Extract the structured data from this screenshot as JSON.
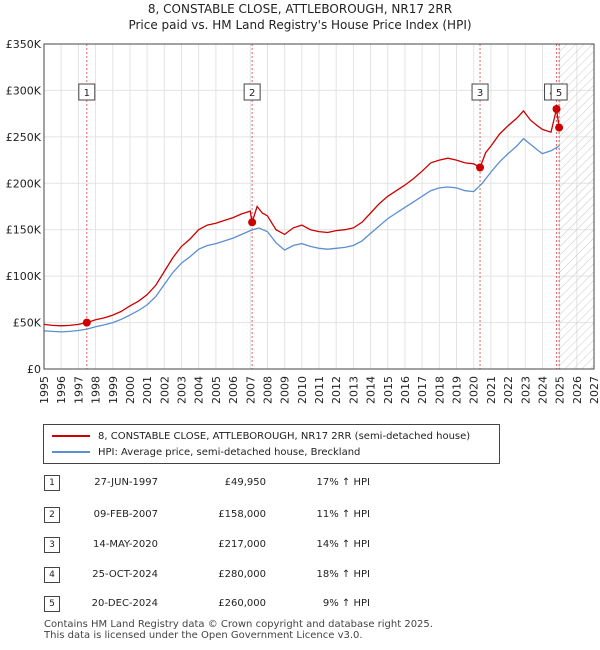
{
  "title_line1": "8, CONSTABLE CLOSE, ATTLEBOROUGH, NR17 2RR",
  "title_line2": "Price paid vs. HM Land Registry's House Price Index (HPI)",
  "legend": {
    "property": "8, CONSTABLE CLOSE, ATTLEBOROUGH, NR17 2RR (semi-detached house)",
    "hpi": "HPI: Average price, semi-detached house, Breckland"
  },
  "colors": {
    "property": "#cc0000",
    "hpi": "#5b8fd0",
    "marker_line": "#e06666"
  },
  "chart_data": {
    "type": "line",
    "title": "Price paid vs. HM Land Registry's House Price Index (HPI)",
    "xlim": [
      1995,
      2027
    ],
    "ylim": [
      0,
      350000
    ],
    "x_ticks": [
      1995,
      1996,
      1997,
      1998,
      1999,
      2000,
      2001,
      2002,
      2003,
      2004,
      2005,
      2006,
      2007,
      2008,
      2009,
      2010,
      2011,
      2012,
      2013,
      2014,
      2015,
      2016,
      2017,
      2018,
      2019,
      2020,
      2021,
      2022,
      2023,
      2024,
      2025,
      2026,
      2027
    ],
    "y_ticks": [
      {
        "value": 0,
        "label": "£0"
      },
      {
        "value": 50000,
        "label": "£50K"
      },
      {
        "value": 100000,
        "label": "£100K"
      },
      {
        "value": 150000,
        "label": "£150K"
      },
      {
        "value": 200000,
        "label": "£200K"
      },
      {
        "value": 250000,
        "label": "£250K"
      },
      {
        "value": 300000,
        "label": "£300K"
      },
      {
        "value": 350000,
        "label": "£350K"
      }
    ],
    "forecast_start": 2025.0,
    "series": [
      {
        "name": "8, CONSTABLE CLOSE, ATTLEBOROUGH, NR17 2RR (semi-detached house)",
        "x": [
          1995.0,
          1995.5,
          1996.0,
          1996.5,
          1997.0,
          1997.49,
          1998.0,
          1998.5,
          1999.0,
          1999.5,
          2000.0,
          2000.5,
          2001.0,
          2001.5,
          2002.0,
          2002.5,
          2003.0,
          2003.5,
          2004.0,
          2004.5,
          2005.0,
          2005.5,
          2006.0,
          2006.5,
          2007.0,
          2007.11,
          2007.4,
          2007.7,
          2008.0,
          2008.5,
          2009.0,
          2009.5,
          2010.0,
          2010.5,
          2011.0,
          2011.5,
          2012.0,
          2012.5,
          2013.0,
          2013.5,
          2014.0,
          2014.5,
          2015.0,
          2015.5,
          2016.0,
          2016.5,
          2017.0,
          2017.5,
          2018.0,
          2018.5,
          2019.0,
          2019.5,
          2020.0,
          2020.37,
          2020.7,
          2021.0,
          2021.5,
          2022.0,
          2022.5,
          2022.9,
          2023.3,
          2023.7,
          2024.0,
          2024.5,
          2024.82,
          2024.97
        ],
        "values": [
          48000,
          47000,
          46500,
          47000,
          48000,
          49950,
          53000,
          55000,
          58000,
          62000,
          68000,
          73000,
          80000,
          90000,
          105000,
          120000,
          132000,
          140000,
          150000,
          155000,
          157000,
          160000,
          163000,
          167000,
          170000,
          158000,
          175000,
          168000,
          165000,
          150000,
          145000,
          152000,
          155000,
          150000,
          148000,
          147000,
          149000,
          150000,
          152000,
          158000,
          168000,
          178000,
          186000,
          192000,
          198000,
          205000,
          213000,
          222000,
          225000,
          227000,
          225000,
          222000,
          221000,
          217000,
          233000,
          240000,
          253000,
          262000,
          270000,
          278000,
          268000,
          262000,
          258000,
          255000,
          280000,
          260000
        ]
      },
      {
        "name": "HPI: Average price, semi-detached house, Breckland",
        "x": [
          1995.0,
          1995.5,
          1996.0,
          1996.5,
          1997.0,
          1997.5,
          1998.0,
          1998.5,
          1999.0,
          1999.5,
          2000.0,
          2000.5,
          2001.0,
          2001.5,
          2002.0,
          2002.5,
          2003.0,
          2003.5,
          2004.0,
          2004.5,
          2005.0,
          2005.5,
          2006.0,
          2006.5,
          2007.0,
          2007.5,
          2008.0,
          2008.5,
          2009.0,
          2009.5,
          2010.0,
          2010.5,
          2011.0,
          2011.5,
          2012.0,
          2012.5,
          2013.0,
          2013.5,
          2014.0,
          2014.5,
          2015.0,
          2015.5,
          2016.0,
          2016.5,
          2017.0,
          2017.5,
          2018.0,
          2018.5,
          2019.0,
          2019.5,
          2020.0,
          2020.5,
          2021.0,
          2021.5,
          2022.0,
          2022.5,
          2022.9,
          2023.3,
          2023.7,
          2024.0,
          2024.5,
          2024.97
        ],
        "values": [
          41000,
          40500,
          40000,
          40500,
          41500,
          43000,
          45500,
          47500,
          50000,
          53500,
          58000,
          63000,
          69000,
          78000,
          91000,
          104000,
          114000,
          121000,
          129000,
          133000,
          135000,
          138000,
          141000,
          145000,
          149000,
          152000,
          148000,
          136000,
          128000,
          133000,
          135000,
          132000,
          130000,
          129000,
          130000,
          131000,
          133000,
          138000,
          146000,
          154000,
          162000,
          168000,
          174000,
          180000,
          186000,
          192000,
          195000,
          196000,
          195000,
          192000,
          191000,
          200000,
          212000,
          223000,
          232000,
          240000,
          248000,
          242000,
          236000,
          232000,
          235000,
          240000
        ]
      }
    ],
    "sales": [
      {
        "num": "1",
        "x": 1997.49,
        "value": 49950
      },
      {
        "num": "2",
        "x": 2007.11,
        "value": 158000
      },
      {
        "num": "3",
        "x": 2020.37,
        "value": 217000
      },
      {
        "num": "4",
        "x": 2024.82,
        "value": 280000
      },
      {
        "num": "5",
        "x": 2024.97,
        "value": 260000
      }
    ]
  },
  "transactions": [
    {
      "num": "1",
      "date": "27-JUN-1997",
      "price": "£49,950",
      "hpi": "17% ↑ HPI"
    },
    {
      "num": "2",
      "date": "09-FEB-2007",
      "price": "£158,000",
      "hpi": "11% ↑ HPI"
    },
    {
      "num": "3",
      "date": "14-MAY-2020",
      "price": "£217,000",
      "hpi": "14% ↑ HPI"
    },
    {
      "num": "4",
      "date": "25-OCT-2024",
      "price": "£280,000",
      "hpi": "18% ↑ HPI"
    },
    {
      "num": "5",
      "date": "20-DEC-2024",
      "price": "£260,000",
      "hpi": "9% ↑ HPI"
    }
  ],
  "footer_line1": "Contains HM Land Registry data © Crown copyright and database right 2025.",
  "footer_line2": "This data is licensed under the Open Government Licence v3.0."
}
